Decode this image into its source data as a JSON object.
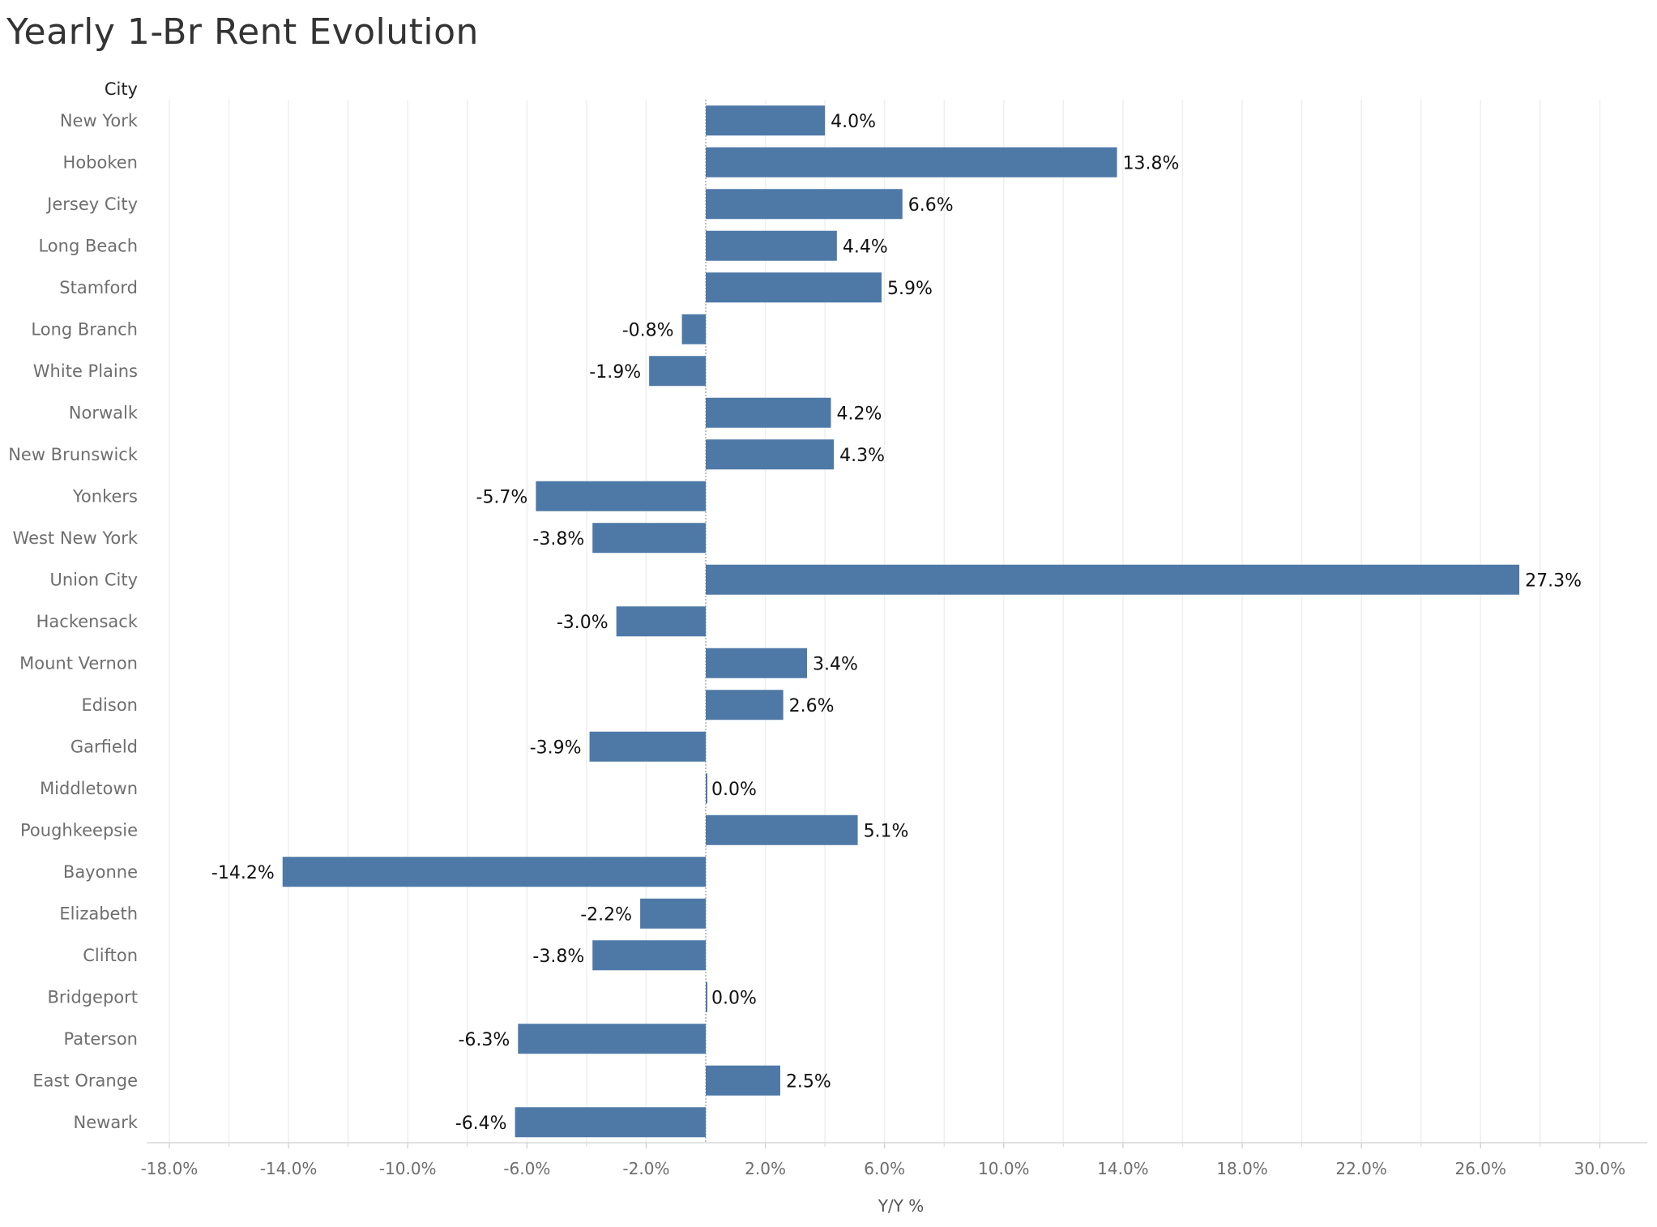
{
  "title": "Yearly 1-Br Rent Evolution",
  "chart_data": {
    "type": "bar",
    "orientation": "horizontal",
    "title": "Yearly 1-Br Rent Evolution",
    "row_header": "City",
    "xlabel": "Y/Y %",
    "xlim": [
      -19.0,
      31.0
    ],
    "xticks": [
      -18,
      -14,
      -10,
      -6,
      -2,
      2,
      6,
      10,
      14,
      18,
      22,
      26,
      30
    ],
    "xtick_labels": [
      "-18.0%",
      "-14.0%",
      "-10.0%",
      "-6.0%",
      "-2.0%",
      "2.0%",
      "6.0%",
      "10.0%",
      "14.0%",
      "18.0%",
      "22.0%",
      "26.0%",
      "30.0%"
    ],
    "grid": true,
    "bar_color": "#4e79a7",
    "categories": [
      "New York",
      "Hoboken",
      "Jersey City",
      "Long Beach",
      "Stamford",
      "Long Branch",
      "White Plains",
      "Norwalk",
      "New Brunswick",
      "Yonkers",
      "West New York",
      "Union City",
      "Hackensack",
      "Mount Vernon",
      "Edison",
      "Garfield",
      "Middletown",
      "Poughkeepsie",
      "Bayonne",
      "Elizabeth",
      "Clifton",
      "Bridgeport",
      "Paterson",
      "East Orange",
      "Newark"
    ],
    "values": [
      4.0,
      13.8,
      6.6,
      4.4,
      5.9,
      -0.8,
      -1.9,
      4.2,
      4.3,
      -5.7,
      -3.8,
      27.3,
      -3.0,
      3.4,
      2.6,
      -3.9,
      0.0,
      5.1,
      -14.2,
      -2.2,
      -3.8,
      0.0,
      -6.3,
      2.5,
      -6.4
    ],
    "value_labels": [
      "4.0%",
      "13.8%",
      "6.6%",
      "4.4%",
      "5.9%",
      "-0.8%",
      "-1.9%",
      "4.2%",
      "4.3%",
      "-5.7%",
      "-3.8%",
      "27.3%",
      "-3.0%",
      "3.4%",
      "2.6%",
      "-3.9%",
      "0.0%",
      "5.1%",
      "-14.2%",
      "-2.2%",
      "-3.8%",
      "0.0%",
      "-6.3%",
      "2.5%",
      "-6.4%"
    ]
  }
}
